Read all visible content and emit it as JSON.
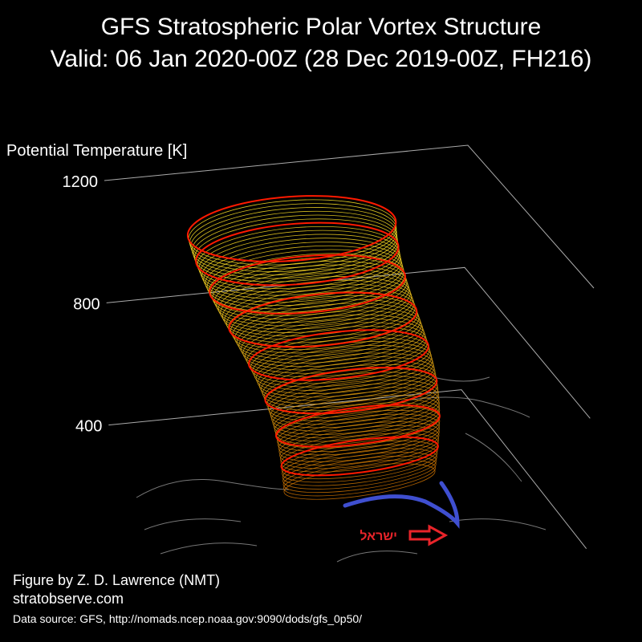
{
  "chart_data": {
    "type": "vortex3d",
    "title": "GFS Stratospheric Polar Vortex Structure",
    "subtitle": "Valid: 06 Jan 2020-00Z  (28 Dec 2019-00Z, FH216)",
    "ylabel": "Potential Temperature [K]",
    "ylim": [
      0,
      1200
    ],
    "yticks": [
      400,
      800,
      1200
    ],
    "annotations": {
      "place": "ישראל",
      "credit": "Figure by Z. D. Lawrence (NMT)",
      "site": "stratobserve.com",
      "source": "Data source: GFS, http://nomads.ncep.noaa.gov:9090/dods/gfs_0p50/"
    }
  }
}
